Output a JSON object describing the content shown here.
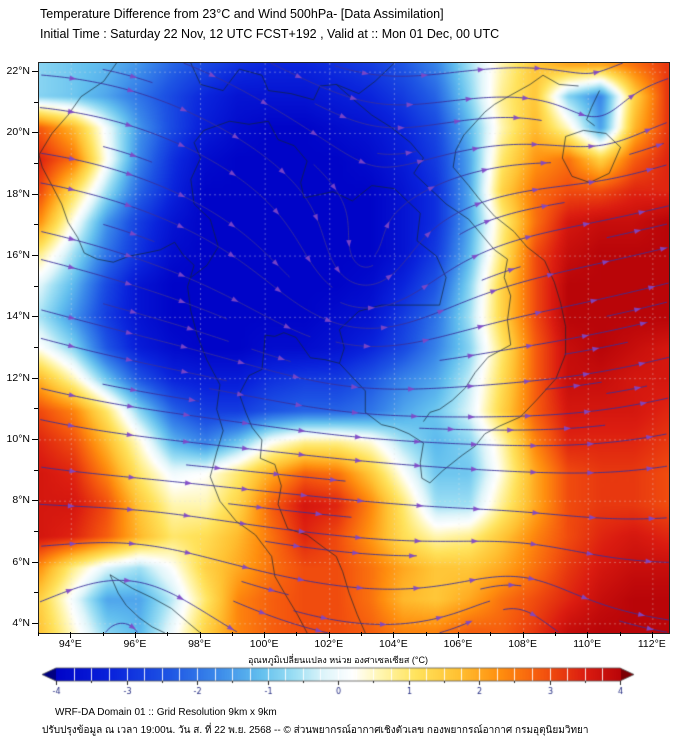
{
  "header": {
    "title": "Temperature Difference from 23°C and Wind 500hPa- [Data Assimilation]",
    "subtitle": "Initial Time : Saturday 22 Nov, 12 UTC FCST+192 , Valid at ::  Mon 01 Dec, 00 UTC"
  },
  "footer": {
    "line1": "WRF-DA Domain 01 :: Grid Resolution 9km x 9km",
    "line2": "ปรับปรุงข้อมูล ณ เวลา 19:00น. วัน ส. ที่ 22 พ.ย. 2568 -- © ส่วนพยากรณ์อากาศเชิงตัวเลข กองพยากรณ์อากาศ กรมอุตุนิยมวิทยา"
  },
  "chart_data": {
    "type": "heatmap",
    "field": "Temperature difference from 23°C at 500 hPa with wind streamlines over Thailand / Indochina",
    "lon_min": 93.0,
    "lon_max": 112.5,
    "lat_top": 22.3,
    "lat_bottom": 3.7,
    "x_axis": {
      "tick_values": [
        94,
        96,
        98,
        100,
        102,
        104,
        106,
        108,
        110,
        112
      ],
      "tick_labels": [
        "94°E",
        "96°E",
        "98°E",
        "100°E",
        "102°E",
        "104°E",
        "106°E",
        "108°E",
        "110°E",
        "112°E"
      ]
    },
    "y_axis": {
      "tick_values": [
        22,
        20,
        18,
        16,
        14,
        12,
        10,
        8,
        6,
        4
      ],
      "tick_labels": [
        "22°N",
        "20°N",
        "18°N",
        "16°N",
        "14°N",
        "12°N",
        "10°N",
        "8°N",
        "6°N",
        "4°N"
      ]
    },
    "colorbar": {
      "label": "อุณหภูมิเปลี่ยนแปลง หน่วย องศาเซลเซียส (°C)",
      "vmin": -4,
      "vmax": 4,
      "tick_values": [
        -4,
        -3,
        -2,
        -1,
        0,
        1,
        2,
        3,
        4
      ],
      "tick_labels": [
        "-4",
        "-3",
        "-2",
        "-1",
        "0",
        "1",
        "2",
        "3",
        "4"
      ]
    },
    "color_stops": [
      [
        -4.6,
        "#000080"
      ],
      [
        -4.0,
        "#0004c8"
      ],
      [
        -3.2,
        "#0a24dc"
      ],
      [
        -2.4,
        "#1e55e4"
      ],
      [
        -1.7,
        "#3c8bea"
      ],
      [
        -1.1,
        "#63c0ee"
      ],
      [
        -0.6,
        "#9fe0f4"
      ],
      [
        -0.2,
        "#dff5fa"
      ],
      [
        0.2,
        "#ffffff"
      ],
      [
        0.6,
        "#fff6b0"
      ],
      [
        1.1,
        "#ffe35c"
      ],
      [
        1.7,
        "#ffc132"
      ],
      [
        2.3,
        "#ff8e0e"
      ],
      [
        2.9,
        "#f4550e"
      ],
      [
        3.5,
        "#db1c10"
      ],
      [
        4.1,
        "#b20007"
      ],
      [
        4.6,
        "#7c0004"
      ]
    ],
    "grid": {
      "nx": 20,
      "ny": 19,
      "lon_min": 93.0,
      "lon_max": 112.5,
      "lat_top": 22.3,
      "lat_bottom": 3.7,
      "values": [
        [
          -0.8,
          -1.0,
          -1.2,
          -1.6,
          -2.2,
          -2.6,
          -3.0,
          -3.2,
          -3.2,
          -3.0,
          -2.8,
          -2.4,
          -1.8,
          -0.6,
          0.6,
          1.6,
          2.0,
          2.0,
          2.6,
          3.2
        ],
        [
          -0.8,
          -1.0,
          -1.4,
          -2.0,
          -2.6,
          -3.2,
          -3.6,
          -3.6,
          -3.6,
          -3.4,
          -3.2,
          -2.8,
          -2.2,
          -0.8,
          0.8,
          1.6,
          -0.8,
          -1.8,
          1.4,
          3.2
        ],
        [
          2.8,
          1.8,
          0.0,
          -1.6,
          -2.6,
          -3.4,
          -3.8,
          -4.0,
          -4.0,
          -3.8,
          -3.6,
          -3.2,
          -2.6,
          -1.2,
          0.6,
          1.8,
          0.5,
          -1.5,
          1.8,
          3.2
        ],
        [
          3.4,
          2.6,
          0.2,
          -1.8,
          -3.0,
          -3.8,
          -4.0,
          -4.0,
          -4.0,
          -4.0,
          -3.8,
          -3.4,
          -2.8,
          -1.4,
          1.0,
          2.2,
          2.6,
          1.4,
          2.8,
          3.4
        ],
        [
          3.0,
          1.2,
          -0.6,
          -2.2,
          -3.2,
          -4.0,
          -4.0,
          -4.0,
          -4.0,
          -4.0,
          -4.0,
          -3.6,
          -3.0,
          -1.4,
          1.4,
          2.6,
          3.0,
          3.0,
          3.4,
          3.4
        ],
        [
          2.2,
          0.2,
          -1.6,
          -2.8,
          -3.6,
          -4.0,
          -4.0,
          -4.0,
          -4.0,
          -4.0,
          -4.0,
          -3.6,
          -3.0,
          -1.4,
          0.8,
          2.6,
          3.6,
          3.8,
          3.8,
          4.0
        ],
        [
          0.8,
          -0.6,
          -2.0,
          -3.0,
          -3.8,
          -4.0,
          -4.0,
          -4.0,
          -4.0,
          -4.0,
          -4.0,
          -3.6,
          -2.8,
          -1.2,
          1.0,
          3.0,
          3.8,
          4.0,
          4.0,
          4.0
        ],
        [
          -0.2,
          -1.2,
          -2.6,
          -3.6,
          -4.0,
          -4.0,
          -4.0,
          -4.0,
          -4.0,
          -4.0,
          -3.8,
          -3.2,
          -2.4,
          -0.8,
          1.4,
          3.0,
          4.0,
          4.0,
          4.0,
          4.0
        ],
        [
          -0.6,
          -1.6,
          -2.8,
          -3.6,
          -4.0,
          -4.0,
          -4.0,
          -4.0,
          -4.0,
          -3.8,
          -3.6,
          -2.8,
          -2.0,
          -0.6,
          1.4,
          3.0,
          4.0,
          4.0,
          4.0,
          4.0
        ],
        [
          0.2,
          -0.8,
          -2.4,
          -3.4,
          -3.8,
          -4.0,
          -4.0,
          -3.8,
          -3.8,
          -3.6,
          -3.2,
          -2.6,
          -1.8,
          -0.8,
          1.0,
          2.8,
          3.8,
          4.0,
          3.8,
          3.6
        ],
        [
          1.8,
          0.6,
          -1.0,
          -2.4,
          -3.2,
          -3.4,
          -3.4,
          -3.0,
          -2.8,
          -2.8,
          -2.4,
          -1.8,
          -1.4,
          -0.4,
          1.2,
          2.8,
          3.8,
          3.8,
          3.6,
          3.6
        ],
        [
          3.0,
          2.4,
          1.0,
          -0.8,
          -2.2,
          -2.8,
          -2.8,
          -2.4,
          -2.2,
          -2.2,
          -2.0,
          -1.4,
          -1.0,
          -0.2,
          1.4,
          2.8,
          3.6,
          3.6,
          3.6,
          3.4
        ],
        [
          3.4,
          3.0,
          1.8,
          0.4,
          -1.2,
          -1.8,
          -1.0,
          0.2,
          0.8,
          0.8,
          0.4,
          -0.6,
          -1.2,
          -0.8,
          0.6,
          2.4,
          3.4,
          3.4,
          3.4,
          3.2
        ],
        [
          3.6,
          3.4,
          2.4,
          1.0,
          0.0,
          0.2,
          1.0,
          2.0,
          2.8,
          2.6,
          1.6,
          0.2,
          -1.0,
          -1.0,
          0.4,
          2.0,
          3.0,
          3.2,
          3.2,
          3.0
        ],
        [
          3.6,
          3.6,
          3.0,
          1.6,
          0.6,
          0.6,
          1.4,
          2.8,
          3.6,
          3.4,
          2.4,
          1.0,
          -0.6,
          -0.6,
          0.8,
          2.0,
          3.0,
          3.2,
          3.2,
          3.0
        ],
        [
          3.6,
          3.4,
          2.8,
          1.8,
          1.0,
          1.2,
          1.8,
          2.6,
          3.4,
          3.0,
          2.2,
          1.2,
          0.6,
          0.8,
          1.6,
          2.4,
          3.0,
          3.4,
          3.6,
          3.4
        ],
        [
          2.2,
          0.8,
          -0.2,
          -0.6,
          0.2,
          1.4,
          2.0,
          2.6,
          3.0,
          3.0,
          2.6,
          2.0,
          1.6,
          1.6,
          2.0,
          2.6,
          3.2,
          3.6,
          3.8,
          3.8
        ],
        [
          1.4,
          0.0,
          -1.4,
          -1.4,
          -0.4,
          1.0,
          2.4,
          2.8,
          3.0,
          3.0,
          2.6,
          1.8,
          1.6,
          2.0,
          2.6,
          3.0,
          3.4,
          3.8,
          4.0,
          4.0
        ],
        [
          1.6,
          0.4,
          -0.8,
          -1.2,
          0.0,
          1.4,
          2.4,
          2.8,
          3.0,
          3.0,
          2.8,
          2.4,
          2.4,
          2.8,
          2.8,
          3.2,
          3.8,
          4.0,
          4.0,
          4.0
        ]
      ]
    },
    "wind": {
      "style": "streamlines",
      "level": "500hPa",
      "line_color": "#39309b",
      "arrow_color": "#8148c8"
    }
  }
}
